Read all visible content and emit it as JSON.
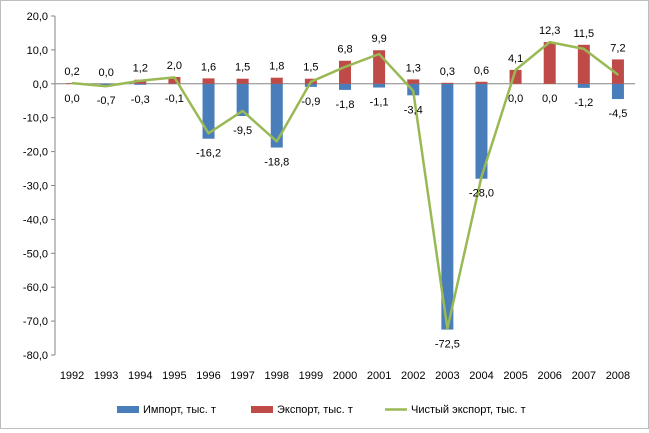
{
  "chart_data": {
    "type": "bar",
    "categories": [
      "1992",
      "1993",
      "1994",
      "1995",
      "1996",
      "1997",
      "1998",
      "1999",
      "2000",
      "2001",
      "2002",
      "2003",
      "2004",
      "2005",
      "2006",
      "2007",
      "2008"
    ],
    "series": [
      {
        "name": "Импорт, тыс. т",
        "kind": "bar",
        "color": "#4a7ebb",
        "values": [
          0.0,
          -0.7,
          -0.3,
          -0.1,
          -16.2,
          -9.5,
          -18.8,
          -0.9,
          -1.8,
          -1.1,
          -3.4,
          -72.5,
          -28.0,
          0.0,
          0.0,
          -1.2,
          -4.5
        ],
        "labels": [
          "0,0",
          "-0,7",
          "-0,3",
          "-0,1",
          "-16,2",
          "-9,5",
          "-18,8",
          "-0,9",
          "-1,8",
          "-1,1",
          "-3,4",
          "-72,5",
          "-28,0",
          "0,0",
          "0,0",
          "-1,2",
          "-4,5"
        ]
      },
      {
        "name": "Экспорт, тыс. т",
        "kind": "bar",
        "color": "#be4b48",
        "values": [
          0.2,
          0.0,
          1.2,
          2.0,
          1.6,
          1.5,
          1.8,
          1.5,
          6.8,
          9.9,
          1.3,
          0.3,
          0.6,
          4.1,
          12.3,
          11.5,
          7.2
        ],
        "labels": [
          "0,2",
          "0,0",
          "1,2",
          "2,0",
          "1,6",
          "1,5",
          "1,8",
          "1,5",
          "6,8",
          "9,9",
          "1,3",
          "0,3",
          "0,6",
          "4,1",
          "12,3",
          "11,5",
          "7,2"
        ]
      },
      {
        "name": "Чистый экспорт, тыс. т",
        "kind": "line",
        "color": "#98b954",
        "values": [
          0.2,
          -0.7,
          0.9,
          1.9,
          -14.6,
          -8.0,
          -17.0,
          0.6,
          5.0,
          8.8,
          -2.1,
          -72.2,
          -27.4,
          4.1,
          12.3,
          10.3,
          2.7
        ]
      }
    ],
    "y_ticks": [
      "20,0",
      "10,0",
      "0,0",
      "-10,0",
      "-20,0",
      "-30,0",
      "-40,0",
      "-50,0",
      "-60,0",
      "-70,0",
      "-80,0"
    ],
    "ylim": [
      -80,
      20
    ],
    "grid": false,
    "legend_position": "bottom"
  }
}
